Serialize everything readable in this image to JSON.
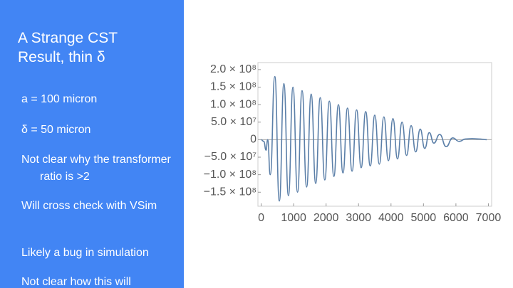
{
  "slide": {
    "title": "A Strange CST Result, thin δ",
    "bullets": [
      "a = 100 micron",
      "δ = 50 micron",
      "Not clear why the transformer ratio is >2",
      "Will cross check with VSim",
      "Likely a bug in simulation",
      "Not clear how this will"
    ]
  },
  "chart_data": {
    "type": "line",
    "x": [
      0,
      80,
      150,
      200,
      280,
      420,
      560,
      700,
      840,
      980,
      1120,
      1260,
      1400,
      1540,
      1680,
      1820,
      1960,
      2100,
      2240,
      2380,
      2520,
      2660,
      2800,
      2940,
      3080,
      3220,
      3360,
      3500,
      3640,
      3780,
      3920,
      4060,
      4200,
      4340,
      4480,
      4620,
      4760,
      4900,
      5040,
      5180,
      5320,
      5500,
      5700,
      5900,
      6100,
      6300,
      6500,
      6700,
      6950
    ],
    "series": [
      {
        "color": "#5b7fa8",
        "values": [
          0,
          -5000000,
          -30000000,
          0,
          -100000000,
          180000000,
          -175000000,
          160000000,
          -160000000,
          150000000,
          -150000000,
          140000000,
          -135000000,
          130000000,
          -125000000,
          120000000,
          -115000000,
          110000000,
          -105000000,
          100000000,
          -95000000,
          90000000,
          -90000000,
          85000000,
          -80000000,
          80000000,
          -75000000,
          70000000,
          -70000000,
          65000000,
          -60000000,
          60000000,
          -55000000,
          50000000,
          -45000000,
          40000000,
          -35000000,
          30000000,
          -25000000,
          20000000,
          -10000000,
          15000000,
          -20000000,
          5000000,
          -5000000,
          2000000,
          3000000,
          2000000,
          0
        ]
      }
    ],
    "xlim": [
      -100,
      7100
    ],
    "ylim": [
      -190000000,
      220000000
    ],
    "xticks": [
      0,
      1000,
      2000,
      3000,
      4000,
      5000,
      6000,
      7000
    ],
    "yticks": [
      {
        "value": -150000000,
        "label": "−1.5 × 10⁸"
      },
      {
        "value": -100000000,
        "label": "−1.0 × 10⁸"
      },
      {
        "value": -50000000,
        "label": "−5.0 × 10⁷"
      },
      0,
      {
        "value": 50000000,
        "label": "5.0 × 10⁷"
      },
      {
        "value": 100000000,
        "label": "1.0 × 10⁸"
      },
      {
        "value": 150000000,
        "label": "1.5 × 10⁸"
      },
      {
        "value": 200000000,
        "label": "2.0 × 10⁸"
      }
    ]
  }
}
